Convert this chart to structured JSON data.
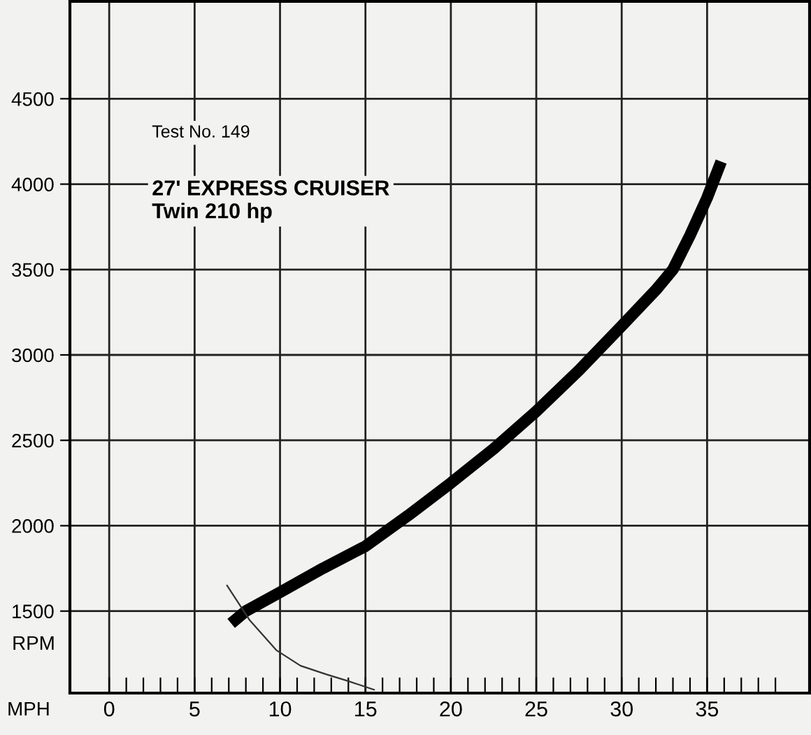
{
  "chart_data": {
    "type": "line",
    "xlabel": "MPH",
    "ylabel": "RPM",
    "annotations": [
      "Test No. 149",
      "27' EXPRESS CRUISER\nTwin 210 hp"
    ],
    "series": [
      {
        "x": [
          7.4,
          8.0,
          10,
          12.5,
          15,
          17.5,
          20,
          22.5,
          25,
          27.5,
          30,
          32,
          33,
          34,
          35,
          35.7
        ],
        "values": [
          1450,
          1500,
          1610,
          1750,
          1880,
          2060,
          2250,
          2450,
          2670,
          2910,
          3170,
          3380,
          3500,
          3700,
          3920,
          4100
        ],
        "color": "#000000"
      },
      {
        "x": [
          6.9,
          8.2,
          9.8,
          11.2,
          12.7,
          14.0,
          15.5
        ],
        "values": [
          1650,
          1450,
          1270,
          1180,
          1130,
          1090,
          1040
        ],
        "color": "#333333"
      }
    ],
    "xlim": [
      -2.3,
      41
    ],
    "ylim": [
      1020,
      5070
    ],
    "xticks": [
      0,
      {
        "value": 1,
        "label": null
      },
      {
        "value": 2,
        "label": null
      },
      {
        "value": 3,
        "label": null
      },
      {
        "value": 4,
        "label": null
      },
      5,
      {
        "value": 6,
        "label": null
      },
      {
        "value": 7,
        "label": null
      },
      {
        "value": 8,
        "label": null
      },
      {
        "value": 9,
        "label": null
      },
      10,
      {
        "value": 11,
        "label": null
      },
      {
        "value": 12,
        "label": null
      },
      {
        "value": 13,
        "label": null
      },
      {
        "value": 14,
        "label": null
      },
      15,
      {
        "value": 16,
        "label": null
      },
      {
        "value": 17,
        "label": null
      },
      {
        "value": 18,
        "label": null
      },
      {
        "value": 19,
        "label": null
      },
      20,
      {
        "value": 21,
        "label": null
      },
      {
        "value": 22,
        "label": null
      },
      {
        "value": 23,
        "label": null
      },
      {
        "value": 24,
        "label": null
      },
      25,
      {
        "value": 26,
        "label": null
      },
      {
        "value": 27,
        "label": null
      },
      {
        "value": 28,
        "label": null
      },
      {
        "value": 29,
        "label": null
      },
      30,
      {
        "value": 31,
        "label": null
      },
      {
        "value": 32,
        "label": null
      },
      {
        "value": 33,
        "label": null
      },
      {
        "value": 34,
        "label": null
      },
      35,
      {
        "value": 36,
        "label": null
      },
      {
        "value": 37,
        "label": null
      },
      {
        "value": 38,
        "label": null
      },
      {
        "value": 39,
        "label": null
      }
    ],
    "yticks": [
      1500,
      2000,
      2500,
      3000,
      3500,
      4000,
      4500
    ],
    "grid": true,
    "marker": "none",
    "line_style": "solid"
  }
}
